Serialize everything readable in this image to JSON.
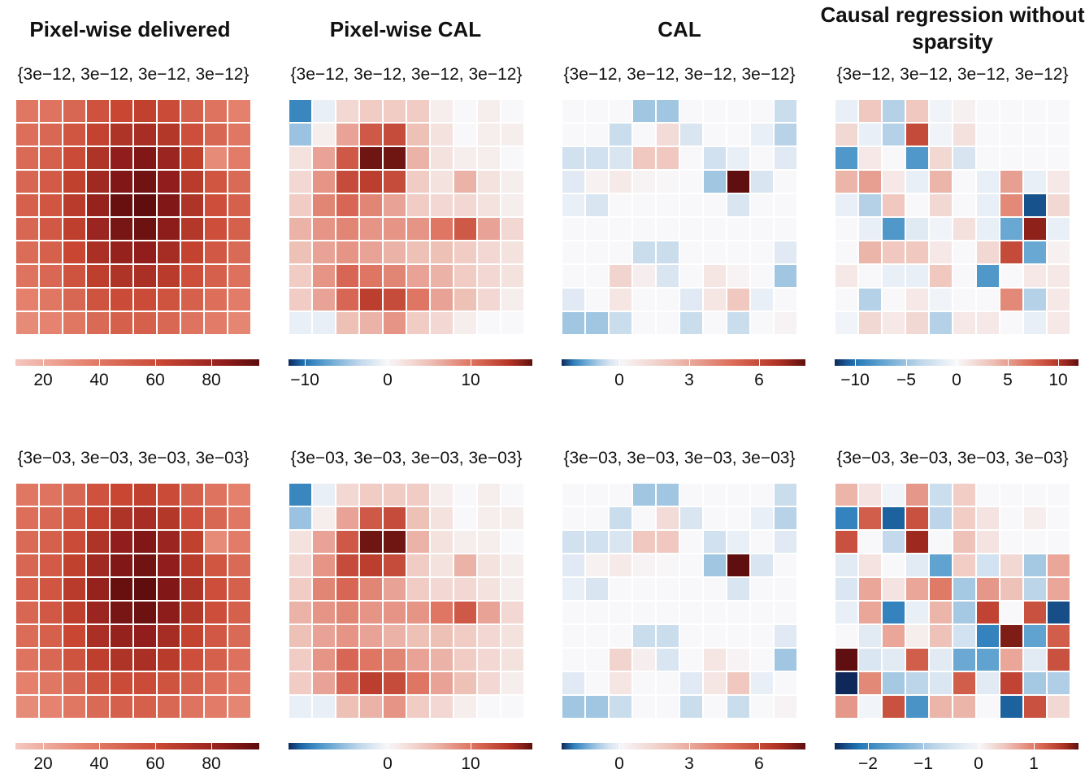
{
  "columns": [
    {
      "title": "Pixel-wise delivered"
    },
    {
      "title": "Pixel-wise CAL"
    },
    {
      "title": "CAL"
    },
    {
      "title": "Causal regression without sparsity"
    }
  ],
  "chart_data": [
    {
      "type": "heatmap",
      "row": 0,
      "col": 0,
      "title": "Pixel-wise delivered",
      "params_label": "{3e−12, 3e−12, 3e−12, 3e−12}",
      "range": [
        10,
        97
      ],
      "palette": "sequential-red",
      "colorbar_ticks": [
        {
          "v": 20,
          "label": "20"
        },
        {
          "v": 40,
          "label": "40"
        },
        {
          "v": 60,
          "label": "60"
        },
        {
          "v": 80,
          "label": "80"
        }
      ],
      "values": [
        [
          40,
          42,
          48,
          57,
          62,
          65,
          60,
          50,
          42,
          36
        ],
        [
          44,
          47,
          55,
          64,
          72,
          75,
          70,
          58,
          48,
          40
        ],
        [
          46,
          50,
          60,
          72,
          84,
          88,
          80,
          65,
          32,
          38
        ],
        [
          48,
          53,
          65,
          78,
          88,
          92,
          84,
          68,
          55,
          46
        ],
        [
          50,
          55,
          68,
          82,
          94,
          96,
          88,
          72,
          58,
          50
        ],
        [
          48,
          54,
          66,
          80,
          90,
          93,
          85,
          70,
          58,
          50
        ],
        [
          45,
          50,
          62,
          74,
          82,
          84,
          76,
          64,
          54,
          46
        ],
        [
          42,
          47,
          56,
          66,
          72,
          74,
          68,
          58,
          50,
          43
        ],
        [
          36,
          40,
          48,
          56,
          60,
          60,
          56,
          50,
          44,
          38
        ],
        [
          32,
          35,
          40,
          46,
          50,
          50,
          47,
          42,
          38,
          34
        ]
      ]
    },
    {
      "type": "heatmap",
      "row": 0,
      "col": 1,
      "title": "Pixel-wise CAL",
      "params_label": "{3e−12, 3e−12, 3e−12, 3e−12}",
      "range": [
        -12,
        17.5
      ],
      "palette": "diverging",
      "colorbar_ticks": [
        {
          "v": -10,
          "label": "−10"
        },
        {
          "v": 0,
          "label": "0"
        },
        {
          "v": 10,
          "label": "10"
        }
      ],
      "values": [
        [
          -9,
          -1,
          3,
          4,
          4,
          4,
          1,
          0,
          1,
          0
        ],
        [
          -5,
          1,
          7,
          12,
          13,
          5,
          2,
          0,
          1,
          1
        ],
        [
          2,
          7,
          12,
          17,
          17,
          6,
          2,
          1,
          1,
          0
        ],
        [
          3,
          8,
          13,
          14,
          13,
          4,
          2,
          6,
          2,
          1
        ],
        [
          4,
          9,
          11,
          9,
          7,
          4,
          3,
          3,
          2,
          1
        ],
        [
          6,
          8,
          9,
          8,
          8,
          8,
          10,
          12,
          7,
          3
        ],
        [
          5,
          7,
          8,
          7,
          6,
          5,
          5,
          4,
          3,
          2
        ],
        [
          4,
          8,
          11,
          10,
          9,
          7,
          6,
          4,
          3,
          2
        ],
        [
          4,
          7,
          11,
          14,
          13,
          10,
          7,
          5,
          3,
          1
        ],
        [
          -1,
          -1,
          5,
          6,
          8,
          4,
          3,
          1,
          0,
          0
        ]
      ]
    },
    {
      "type": "heatmap",
      "row": 0,
      "col": 2,
      "title": "CAL",
      "params_label": "{3e−12, 3e−12, 3e−12, 3e−12}",
      "range": [
        -2.5,
        8
      ],
      "palette": "diverging",
      "colorbar_ticks": [
        {
          "v": 0,
          "label": "0"
        },
        {
          "v": 3,
          "label": "3"
        },
        {
          "v": 6,
          "label": "6"
        }
      ],
      "values": [
        [
          0,
          0,
          0,
          -1,
          -1,
          0,
          0,
          0,
          0,
          -0.6
        ],
        [
          0,
          0,
          -0.6,
          0,
          1.2,
          -0.4,
          0,
          0,
          -0.2,
          -0.8
        ],
        [
          -0.5,
          -0.5,
          -0.4,
          2,
          2,
          0,
          -0.5,
          -0.2,
          0,
          -0.3
        ],
        [
          -0.3,
          0.3,
          0.6,
          0.2,
          0.1,
          0,
          -1,
          8,
          -0.4,
          0
        ],
        [
          -0.2,
          -0.4,
          0,
          0,
          0,
          0,
          0,
          -0.4,
          0,
          0
        ],
        [
          0,
          0,
          0,
          0,
          0,
          0,
          0,
          0,
          0,
          0
        ],
        [
          0,
          0,
          0,
          -0.6,
          -0.6,
          0,
          0,
          0,
          0,
          -0.3
        ],
        [
          0,
          0,
          1.5,
          0.4,
          -0.4,
          0,
          0.8,
          0.2,
          0,
          -1
        ],
        [
          -0.3,
          0,
          0.8,
          0,
          0,
          -0.3,
          0.8,
          2,
          -0.2,
          0
        ],
        [
          -1,
          -1,
          -0.6,
          0,
          0,
          -0.6,
          0,
          -0.6,
          0,
          0.2
        ]
      ]
    },
    {
      "type": "heatmap",
      "row": 0,
      "col": 3,
      "title": "Causal regression without sparsity",
      "params_label": "{3e−12, 3e−12, 3e−12, 3e−12}",
      "range": [
        -12,
        12
      ],
      "palette": "diverging",
      "colorbar_ticks": [
        {
          "v": -10,
          "label": "−10"
        },
        {
          "v": -5,
          "label": "−5"
        },
        {
          "v": 0,
          "label": "0"
        },
        {
          "v": 5,
          "label": "5"
        },
        {
          "v": 10,
          "label": "10"
        }
      ],
      "values": [
        [
          -1,
          3,
          -4,
          3,
          -0.5,
          0.5,
          0,
          0,
          0,
          0
        ],
        [
          2,
          -1,
          -4,
          9,
          -0.5,
          1.5,
          0,
          0,
          0,
          0
        ],
        [
          -8,
          1,
          0,
          -8,
          2,
          -2,
          0,
          0,
          0,
          0
        ],
        [
          4,
          5,
          1,
          -1,
          4,
          0,
          -1,
          5,
          -1,
          1
        ],
        [
          -1,
          -4,
          3,
          0,
          2,
          0,
          -1,
          6,
          -11,
          2
        ],
        [
          0,
          -1,
          -8,
          -1.5,
          -0.5,
          1.5,
          -1,
          -7,
          11,
          -1
        ],
        [
          0,
          4,
          3,
          3,
          1,
          0,
          2,
          9,
          -7,
          0.5
        ],
        [
          1,
          0,
          -1,
          -1,
          3,
          0,
          -8,
          0,
          1,
          1
        ],
        [
          0,
          -4,
          0,
          1,
          -0.5,
          0,
          0,
          6,
          -4,
          1
        ],
        [
          -0.5,
          2,
          1,
          2,
          -4,
          1,
          1,
          0,
          -1,
          1
        ]
      ]
    },
    {
      "type": "heatmap",
      "row": 1,
      "col": 0,
      "title": "Pixel-wise delivered",
      "params_label": "{3e−03, 3e−03, 3e−03, 3e−03}",
      "range": [
        10,
        97
      ],
      "palette": "sequential-red",
      "colorbar_ticks": [
        {
          "v": 20,
          "label": "20"
        },
        {
          "v": 40,
          "label": "40"
        },
        {
          "v": 60,
          "label": "60"
        },
        {
          "v": 80,
          "label": "80"
        }
      ],
      "values": [
        [
          40,
          42,
          48,
          57,
          62,
          65,
          60,
          50,
          42,
          36
        ],
        [
          44,
          47,
          55,
          64,
          72,
          75,
          70,
          58,
          48,
          40
        ],
        [
          46,
          50,
          60,
          72,
          84,
          88,
          80,
          65,
          32,
          38
        ],
        [
          48,
          53,
          65,
          78,
          88,
          92,
          84,
          68,
          55,
          46
        ],
        [
          50,
          55,
          68,
          82,
          94,
          96,
          88,
          72,
          58,
          50
        ],
        [
          48,
          54,
          66,
          80,
          90,
          93,
          85,
          70,
          58,
          50
        ],
        [
          45,
          50,
          62,
          74,
          82,
          84,
          76,
          64,
          54,
          46
        ],
        [
          42,
          47,
          56,
          66,
          72,
          74,
          68,
          58,
          50,
          43
        ],
        [
          36,
          40,
          48,
          56,
          60,
          60,
          56,
          50,
          44,
          38
        ],
        [
          32,
          35,
          40,
          46,
          50,
          50,
          47,
          42,
          38,
          34
        ]
      ]
    },
    {
      "type": "heatmap",
      "row": 1,
      "col": 1,
      "title": "Pixel-wise CAL",
      "params_label": "{3e−03, 3e−03, 3e−03, 3e−03}",
      "range": [
        -12,
        17.5
      ],
      "palette": "diverging",
      "colorbar_ticks": [
        {
          "v": 0,
          "label": "0"
        },
        {
          "v": 10,
          "label": "10"
        }
      ],
      "values": [
        [
          -9,
          -1,
          3,
          4,
          4,
          4,
          1,
          0,
          1,
          0
        ],
        [
          -5,
          1,
          7,
          12,
          13,
          5,
          2,
          0,
          1,
          1
        ],
        [
          2,
          7,
          12,
          17,
          17,
          6,
          2,
          1,
          1,
          0
        ],
        [
          3,
          8,
          13,
          14,
          13,
          4,
          2,
          6,
          2,
          1
        ],
        [
          4,
          9,
          11,
          9,
          7,
          4,
          3,
          3,
          2,
          1
        ],
        [
          6,
          8,
          9,
          8,
          8,
          8,
          10,
          12,
          7,
          3
        ],
        [
          5,
          7,
          8,
          7,
          6,
          5,
          5,
          4,
          3,
          2
        ],
        [
          4,
          8,
          11,
          10,
          9,
          7,
          6,
          4,
          3,
          2
        ],
        [
          4,
          7,
          11,
          14,
          13,
          10,
          7,
          5,
          3,
          1
        ],
        [
          -1,
          -1,
          5,
          6,
          8,
          4,
          3,
          1,
          0,
          0
        ]
      ]
    },
    {
      "type": "heatmap",
      "row": 1,
      "col": 2,
      "title": "CAL",
      "params_label": "{3e−03, 3e−03, 3e−03, 3e−03}",
      "range": [
        -2.5,
        8
      ],
      "palette": "diverging",
      "colorbar_ticks": [
        {
          "v": 0,
          "label": "0"
        },
        {
          "v": 3,
          "label": "3"
        },
        {
          "v": 6,
          "label": "6"
        }
      ],
      "values": [
        [
          0,
          0,
          0,
          -1,
          -1,
          0,
          0,
          0,
          0,
          -0.6
        ],
        [
          0,
          0,
          -0.6,
          0,
          1.2,
          -0.4,
          0,
          0,
          -0.2,
          -0.8
        ],
        [
          -0.5,
          -0.5,
          -0.4,
          2,
          2,
          0,
          -0.5,
          -0.2,
          0,
          -0.3
        ],
        [
          -0.3,
          0.3,
          0.6,
          0.2,
          0.1,
          0,
          -1,
          8,
          -0.4,
          0
        ],
        [
          -0.2,
          -0.4,
          0,
          0,
          0,
          0,
          0,
          -0.4,
          0,
          0
        ],
        [
          0,
          0,
          0,
          0,
          0,
          0,
          0,
          0,
          0,
          0
        ],
        [
          0,
          0,
          0,
          -0.6,
          -0.6,
          0,
          0,
          0,
          0,
          -0.3
        ],
        [
          0,
          0,
          1.5,
          0.4,
          -0.4,
          0,
          0.8,
          0.2,
          0,
          -1
        ],
        [
          -0.3,
          0,
          0.8,
          0,
          0,
          -0.3,
          0.8,
          2,
          -0.2,
          0
        ],
        [
          -1,
          -1,
          -0.6,
          0,
          0,
          -0.6,
          0,
          -0.6,
          0,
          0.2
        ]
      ]
    },
    {
      "type": "heatmap",
      "row": 1,
      "col": 3,
      "title": "Causal regression without sparsity",
      "params_label": "{3e−03, 3e−03, 3e−03, 3e−03}",
      "range": [
        -2.6,
        1.8
      ],
      "palette": "diverging",
      "colorbar_ticks": [
        {
          "v": -2,
          "label": "−2"
        },
        {
          "v": -1,
          "label": "−1"
        },
        {
          "v": 0,
          "label": "0"
        },
        {
          "v": 1,
          "label": "1"
        }
      ],
      "values": [
        [
          0.6,
          0.2,
          -0.1,
          0.8,
          -0.6,
          0.4,
          0,
          0,
          0,
          0
        ],
        [
          -2,
          1.2,
          -2.3,
          1.3,
          -0.8,
          0.4,
          0.2,
          0,
          0.1,
          0
        ],
        [
          1.3,
          0,
          -0.7,
          1.6,
          0,
          0.5,
          0.2,
          0,
          0,
          0
        ],
        [
          -0.3,
          0.2,
          0,
          -0.3,
          -1.6,
          0.4,
          -0.5,
          0.3,
          -1,
          0.7
        ],
        [
          -0.4,
          0.7,
          0.2,
          0.7,
          1,
          -1,
          0.8,
          0.5,
          -0.8,
          0.7
        ],
        [
          -0.2,
          0.7,
          -2,
          -0.2,
          0.6,
          -1,
          1.4,
          0,
          1.3,
          -2.4
        ],
        [
          0,
          -0.3,
          0.7,
          0.1,
          0.5,
          -0.5,
          -2,
          1.7,
          -1.6,
          1.2
        ],
        [
          1.8,
          -0.4,
          -0.3,
          1.2,
          -0.3,
          -1.5,
          -1.6,
          0.7,
          -0.3,
          1.3
        ],
        [
          -2.6,
          0.9,
          -1,
          -0.8,
          -0.4,
          1.2,
          -0.3,
          1.4,
          -1,
          -0.9
        ],
        [
          0.8,
          -0.1,
          1.3,
          -1.8,
          0.6,
          0.6,
          0,
          -2.3,
          1.3,
          0.3
        ]
      ]
    }
  ]
}
